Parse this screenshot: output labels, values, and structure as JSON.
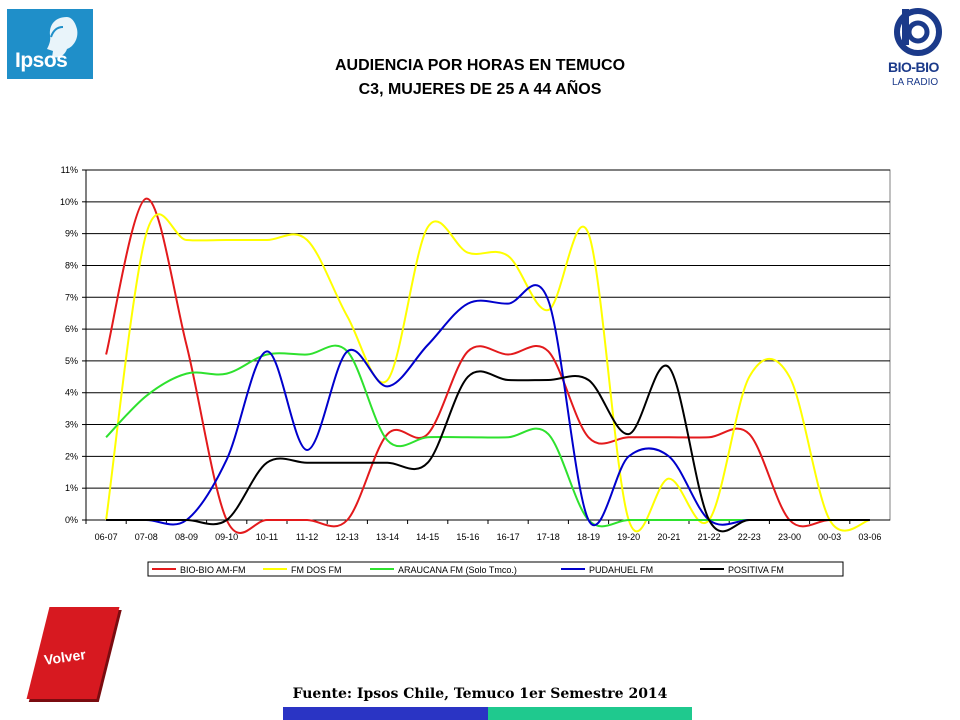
{
  "logos": {
    "ipsos": "Ipsos",
    "radio_name": "BIO-BIO",
    "radio_sub": "LA RADIO"
  },
  "title_line1": "AUDIENCIA POR HORAS EN TEMUCO",
  "title_line2": "C3, MUJERES DE 25 A 44 AÑOS",
  "back_button": "Volver",
  "source": "Fuente: Ipsos Chile, Temuco 1er Semestre 2014",
  "colors": {
    "ipsos_blue": "#1f8fc9",
    "volver_red": "#d71920",
    "bar_blue": "#2a34c4",
    "bar_teal": "#1fc98e"
  },
  "chart_data": {
    "type": "line",
    "categories": [
      "06-07",
      "07-08",
      "08-09",
      "09-10",
      "10-11",
      "11-12",
      "12-13",
      "13-14",
      "14-15",
      "15-16",
      "16-17",
      "17-18",
      "18-19",
      "19-20",
      "20-21",
      "21-22",
      "22-23",
      "23-00",
      "00-03",
      "03-06"
    ],
    "ylim": [
      0,
      11
    ],
    "yticks": [
      "0%",
      "1%",
      "2%",
      "3%",
      "4%",
      "5%",
      "6%",
      "7%",
      "8%",
      "9%",
      "10%",
      "11%"
    ],
    "grid": true,
    "legend_position": "bottom",
    "series": [
      {
        "name": "BIO-BIO AM-FM",
        "color": "#e31a1c",
        "values": [
          5.2,
          10.1,
          5.5,
          0.0,
          0.0,
          0.0,
          0.0,
          2.7,
          2.7,
          5.3,
          5.2,
          5.3,
          2.6,
          2.6,
          2.6,
          2.6,
          2.7,
          0.0,
          0.0,
          0.0
        ]
      },
      {
        "name": "FM DOS FM",
        "color": "#ffff00",
        "values": [
          0.0,
          9.0,
          8.8,
          8.8,
          8.8,
          8.8,
          6.4,
          4.4,
          9.2,
          8.4,
          8.3,
          6.6,
          9.0,
          0.0,
          1.3,
          0.0,
          4.5,
          4.5,
          0.0,
          0.0
        ]
      },
      {
        "name": "ARAUCANA FM  (Solo Tmco.)",
        "color": "#2ee12e",
        "values": [
          2.6,
          3.9,
          4.6,
          4.6,
          5.2,
          5.2,
          5.3,
          2.5,
          2.6,
          2.6,
          2.6,
          2.7,
          0.0,
          0.0,
          0.0,
          0.0,
          0.0,
          0.0,
          0.0,
          0.0
        ]
      },
      {
        "name": "PUDAHUEL FM",
        "color": "#0000cc",
        "values": [
          0.0,
          0.0,
          0.0,
          1.9,
          5.3,
          2.2,
          5.3,
          4.2,
          5.5,
          6.8,
          6.8,
          6.9,
          0.0,
          2.0,
          2.0,
          0.0,
          0.0,
          0.0,
          0.0,
          0.0
        ]
      },
      {
        "name": "POSITIVA FM",
        "color": "#000000",
        "values": [
          0.0,
          0.0,
          0.0,
          0.0,
          1.8,
          1.8,
          1.8,
          1.8,
          1.8,
          4.5,
          4.4,
          4.4,
          4.4,
          2.7,
          4.8,
          0.0,
          0.0,
          0.0,
          0.0,
          0.0
        ]
      }
    ]
  }
}
